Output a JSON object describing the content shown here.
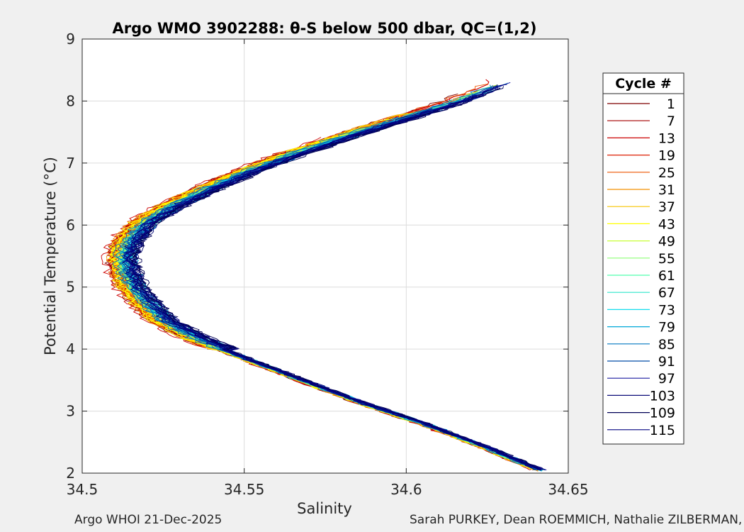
{
  "chart_data": {
    "type": "line",
    "title": "Argo WMO 3902288: θ-S below 500 dbar,  QC=(1,2)",
    "xlabel": "Salinity",
    "ylabel": "Potential Temperature (°C)",
    "xlim": [
      34.5,
      34.65
    ],
    "ylim": [
      2,
      9
    ],
    "xticks": [
      34.5,
      34.55,
      34.6,
      34.65
    ],
    "xtick_labels": [
      "34.5",
      "34.55",
      "34.6",
      "34.65"
    ],
    "yticks": [
      2,
      3,
      4,
      5,
      6,
      7,
      8,
      9
    ],
    "ytick_labels": [
      "2",
      "3",
      "4",
      "5",
      "6",
      "7",
      "8",
      "9"
    ],
    "grid": true,
    "legend_title": "Cycle #",
    "legend_position": "right",
    "legend": [
      {
        "label": "1",
        "color": "#7f0000"
      },
      {
        "label": "7",
        "color": "#a50000"
      },
      {
        "label": "13",
        "color": "#cc0000"
      },
      {
        "label": "19",
        "color": "#dd1c00"
      },
      {
        "label": "25",
        "color": "#ee5500"
      },
      {
        "label": "31",
        "color": "#f39000"
      },
      {
        "label": "37",
        "color": "#f7c400"
      },
      {
        "label": "43",
        "color": "#ffff00"
      },
      {
        "label": "49",
        "color": "#c8ff37"
      },
      {
        "label": "55",
        "color": "#8cff73"
      },
      {
        "label": "61",
        "color": "#50ffaf"
      },
      {
        "label": "67",
        "color": "#2ee6cc"
      },
      {
        "label": "73",
        "color": "#14ddee"
      },
      {
        "label": "79",
        "color": "#00a8d8"
      },
      {
        "label": "85",
        "color": "#0078c0"
      },
      {
        "label": "91",
        "color": "#004ca8"
      },
      {
        "label": "97",
        "color": "#1a1aa0"
      },
      {
        "label": "103",
        "color": "#0c0c78"
      },
      {
        "label": "109",
        "color": "#000055"
      },
      {
        "label": "115",
        "color": "#000080"
      }
    ],
    "mean_profile": {
      "salinity": [
        34.642,
        34.625,
        34.605,
        34.585,
        34.565,
        34.55,
        34.536,
        34.525,
        34.519,
        34.515,
        34.513,
        34.512,
        34.514,
        34.519,
        34.527,
        34.537,
        34.55,
        34.565,
        34.582,
        34.6,
        34.615,
        34.628
      ],
      "theta": [
        2.02,
        2.4,
        2.8,
        3.15,
        3.55,
        3.85,
        4.15,
        4.45,
        4.75,
        5.0,
        5.25,
        5.5,
        5.75,
        6.05,
        6.3,
        6.55,
        6.85,
        7.15,
        7.45,
        7.75,
        8.0,
        8.28
      ]
    }
  },
  "footer": {
    "left": "Argo WHOI 21-Dec-2025",
    "right": "Sarah PURKEY, Dean ROEMMICH, Nathalie ZILBERMAN, Jo"
  },
  "colors": {
    "figure_bg": "#f0f0f0",
    "axes_bg": "#ffffff",
    "grid": "#dcdcdc",
    "text": "#262626"
  }
}
